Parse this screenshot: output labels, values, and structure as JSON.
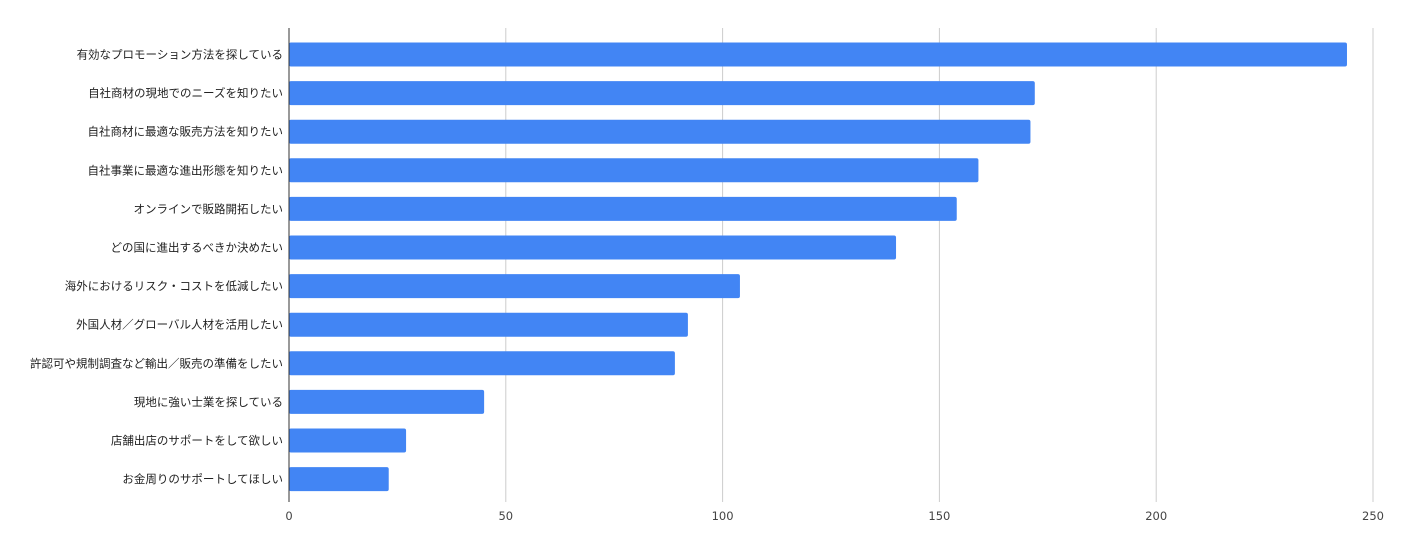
{
  "chart_data": {
    "type": "bar",
    "orientation": "horizontal",
    "title": "",
    "xlabel": "",
    "ylabel": "",
    "categories": [
      "有効なプロモーション方法を探している",
      "自社商材の現地でのニーズを知りたい",
      "自社商材に最適な販売方法を知りたい",
      "自社事業に最適な進出形態を知りたい",
      "オンラインで販路開拓したい",
      "どの国に進出するべきか決めたい",
      "海外におけるリスク・コストを低減したい",
      "外国人材／グローバル人材を活用したい",
      "許認可や規制調査など輸出／販売の準備をしたい",
      "現地に強い士業を探している",
      "店舗出店のサポートをして欲しい",
      "お金周りのサポートしてほしい"
    ],
    "values": [
      244,
      172,
      171,
      159,
      154,
      140,
      104,
      92,
      89,
      45,
      27,
      23
    ],
    "xlim": [
      0,
      250
    ],
    "ticks": [
      "0",
      "50",
      "100",
      "150",
      "200",
      "250"
    ],
    "grid": true,
    "bar_color": "#4285f4"
  }
}
